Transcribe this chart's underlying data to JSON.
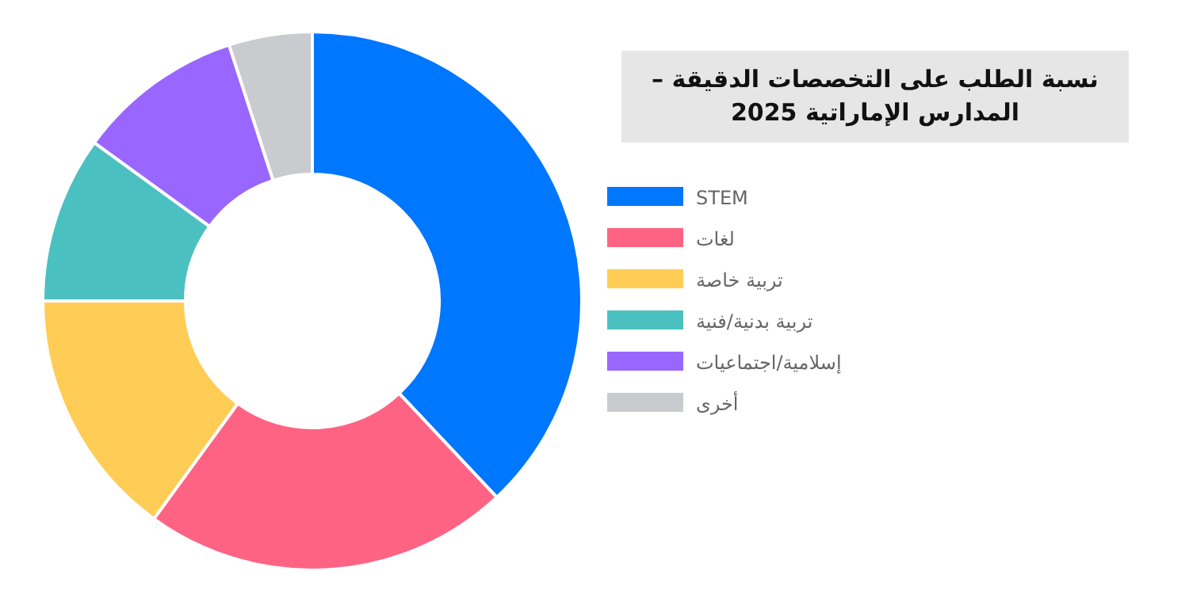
{
  "chart_data": {
    "type": "donut",
    "title": "نسبة الطلب على التخصصات الدقيقة – المدارس الإماراتية 2025",
    "categories": [
      "STEM",
      "لغات",
      "تربية خاصة",
      "تربية بدنية/فنية",
      "إسلامية/اجتماعيات",
      "أخرى"
    ],
    "values": [
      38,
      22,
      15,
      10,
      10,
      5
    ],
    "colors": [
      "#0077ff",
      "#ff6384",
      "#ffcd56",
      "#4bc0c0",
      "#9966ff",
      "#c9cbcf"
    ],
    "legend": "right"
  }
}
